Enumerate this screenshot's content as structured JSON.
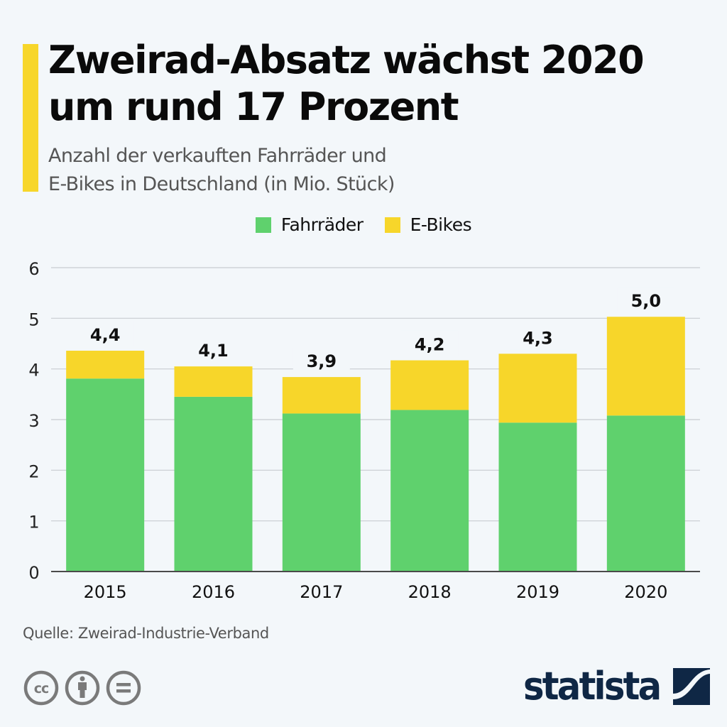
{
  "header": {
    "title_line1": "Zweirad-Absatz wächst 2020",
    "title_line2": "um rund 17 Prozent",
    "subtitle_line1": "Anzahl der verkauften Fahrräder und",
    "subtitle_line2": "E-Bikes in Deutschland (in Mio. Stück)"
  },
  "colors": {
    "accent": "#f7d62a",
    "fahrraeder": "#5fd16d",
    "ebikes": "#f7d62a",
    "background": "#f3f7fa",
    "logo": "#0f2745",
    "gridline": "#c8ccd0",
    "axis": "#4a4a4a"
  },
  "legend": [
    {
      "label": "Fahrräder",
      "color": "#5fd16d"
    },
    {
      "label": "E-Bikes",
      "color": "#f7d62a"
    }
  ],
  "chart_data": {
    "type": "bar",
    "stacked": true,
    "title": "Zweirad-Absatz wächst 2020 um rund 17 Prozent",
    "subtitle": "Anzahl der verkauften Fahrräder und E-Bikes in Deutschland (in Mio. Stück)",
    "xlabel": "",
    "ylabel": "",
    "categories": [
      "2015",
      "2016",
      "2017",
      "2018",
      "2019",
      "2020"
    ],
    "series": [
      {
        "name": "Fahrräder",
        "values": [
          3.81,
          3.45,
          3.12,
          3.19,
          2.94,
          3.08
        ]
      },
      {
        "name": "E-Bikes",
        "values": [
          0.55,
          0.6,
          0.72,
          0.98,
          1.36,
          1.95
        ]
      }
    ],
    "total_labels": [
      "4,4",
      "4,1",
      "3,9",
      "4,2",
      "4,3",
      "5,0"
    ],
    "ylim": [
      0,
      6
    ],
    "yticks": [
      "0",
      "1",
      "2",
      "3",
      "4",
      "5",
      "6"
    ],
    "grid": true,
    "legend_position": "top-center"
  },
  "footer": {
    "source": "Quelle: Zweirad-Industrie-Verband",
    "license_icons": [
      "cc-icon",
      "attribution-icon",
      "no-derivatives-icon"
    ],
    "logo_text": "statista"
  }
}
